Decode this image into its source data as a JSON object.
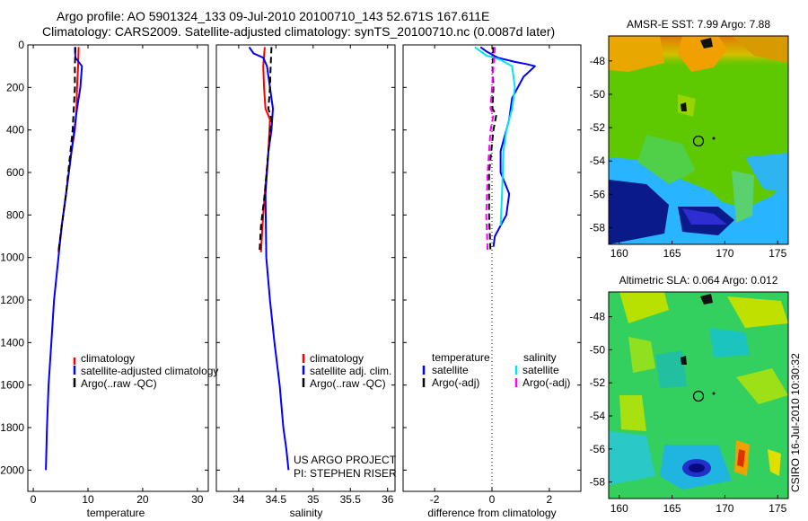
{
  "header": {
    "line1": "Argo profile: AO 5901324_133 09-Jul-2010 20100710_143 52.671S 167.611E",
    "line2": "Climatology: CARS2009. Satellite-adjusted climatology: synTS_20100710.nc (0.0087d later)"
  },
  "colors": {
    "red": "#ff0000",
    "blue": "#0000ff",
    "black": "#000000",
    "cyan": "#00e5ee",
    "magenta": "#ff00ff"
  },
  "chart_data": [
    {
      "type": "line",
      "xlabel": "temperature",
      "ylim": [
        2100,
        0
      ],
      "yticks": [
        0,
        200,
        400,
        600,
        800,
        1000,
        1200,
        1400,
        1600,
        1800,
        2000
      ],
      "xlim": [
        -1,
        32
      ],
      "xticks": [
        0,
        10,
        20,
        30
      ],
      "series": [
        {
          "name": "climatology",
          "color": "red",
          "x": [
            8.3,
            8.2,
            8.0,
            7.9,
            7.6,
            7.0,
            6.0,
            5.2,
            4.6
          ],
          "y": [
            10,
            100,
            200,
            300,
            400,
            500,
            700,
            850,
            975
          ]
        },
        {
          "name": "satellite-adjusted climatology",
          "color": "blue",
          "x": [
            7.6,
            7.7,
            8.9,
            8.6,
            8.0,
            7.5,
            7.0,
            6.0,
            5.2,
            4.6,
            3.8,
            3.3,
            2.8,
            2.5,
            2.3
          ],
          "y": [
            10,
            60,
            100,
            200,
            300,
            400,
            500,
            700,
            850,
            1000,
            1200,
            1400,
            1600,
            1800,
            2000
          ]
        },
        {
          "name": "Argo(..raw -QC)",
          "color": "black",
          "dashed": true,
          "x": [
            7.7,
            7.6,
            7.6,
            7.4,
            7.2,
            6.8,
            6.0,
            5.2,
            4.6
          ],
          "y": [
            10,
            100,
            200,
            300,
            400,
            500,
            700,
            850,
            975
          ]
        }
      ]
    },
    {
      "type": "line",
      "xlabel": "salinity",
      "ylim": [
        2100,
        0
      ],
      "xlim": [
        33.7,
        36.1
      ],
      "xticks": [
        34,
        34.5,
        35,
        35.5,
        36
      ],
      "series": [
        {
          "name": "climatology",
          "color": "red",
          "x": [
            34.35,
            34.33,
            34.34,
            34.36,
            34.42,
            34.4,
            34.35,
            34.32,
            34.3
          ],
          "y": [
            10,
            100,
            200,
            300,
            350,
            500,
            700,
            850,
            975
          ]
        },
        {
          "name": "satellite adj. clim.",
          "color": "blue",
          "x": [
            34.14,
            34.2,
            34.33,
            34.38,
            34.42,
            34.46,
            34.44,
            34.4,
            34.36,
            34.37,
            34.42,
            34.48,
            34.55,
            34.6,
            34.64,
            34.67
          ],
          "y": [
            10,
            40,
            60,
            100,
            200,
            300,
            400,
            500,
            700,
            1000,
            1200,
            1400,
            1600,
            1800,
            1900,
            2000
          ]
        },
        {
          "name": "Argo(..raw -QC)",
          "color": "black",
          "dashed": true,
          "x": [
            34.44,
            34.43,
            34.42,
            34.4,
            34.44,
            34.4,
            34.35,
            34.3,
            34.28
          ],
          "y": [
            10,
            100,
            200,
            300,
            350,
            500,
            700,
            850,
            975
          ]
        }
      ]
    },
    {
      "type": "line",
      "xlabel": "difference from climatology",
      "ylim": [
        2100,
        0
      ],
      "xlim": [
        -3.1,
        3.1
      ],
      "xticks": [
        -2,
        0,
        2
      ],
      "series": [
        {
          "name": "satellite",
          "group": "temperature",
          "color": "blue",
          "x": [
            -0.4,
            -0.2,
            0.2,
            0.8,
            1.2,
            1.5,
            1.1,
            0.7,
            0.6,
            0.4,
            0.3,
            0.3,
            0.6,
            0.5,
            0.1,
            0.05
          ],
          "y": [
            10,
            30,
            60,
            80,
            90,
            100,
            150,
            250,
            350,
            450,
            500,
            600,
            700,
            800,
            900,
            950
          ]
        },
        {
          "name": "Argo(-adj)",
          "group": "temperature",
          "color": "black",
          "dashed": true,
          "x": [
            0.05,
            0.02,
            0.05,
            0.02,
            0.15,
            0.05,
            -0.1,
            -0.1,
            -0.05
          ],
          "y": [
            10,
            100,
            200,
            300,
            330,
            400,
            600,
            800,
            975
          ]
        },
        {
          "name": "satellite",
          "group": "salinity",
          "color": "cyan",
          "x": [
            -0.6,
            -0.2,
            0.3,
            0.7,
            0.8,
            0.7,
            0.5,
            0.4,
            0.35,
            0.3
          ],
          "y": [
            10,
            50,
            70,
            100,
            200,
            300,
            400,
            500,
            700,
            850
          ]
        },
        {
          "name": "Argo(-adj)",
          "group": "salinity",
          "color": "magenta",
          "dashed": true,
          "x": [
            0.1,
            0.05,
            0.0,
            -0.05,
            0.05,
            -0.05,
            -0.15,
            -0.2,
            -0.15
          ],
          "y": [
            10,
            100,
            200,
            300,
            330,
            400,
            600,
            800,
            975
          ]
        }
      ]
    }
  ],
  "maps": [
    {
      "title": "AMSR-E SST: 7.99 Argo: 7.88",
      "xticks": [
        "160",
        "165",
        "170",
        "175"
      ],
      "yticks": [
        "-48",
        "-50",
        "-52",
        "-54",
        "-56",
        "-58"
      ],
      "xlim": [
        159,
        176
      ],
      "ylim": [
        -59,
        -46.5
      ],
      "marker": [
        167.6,
        -52.7
      ]
    },
    {
      "title": "Altimetric SLA: 0.064 Argo: 0.012",
      "xticks": [
        "160",
        "165",
        "170",
        "175"
      ],
      "yticks": [
        "-48",
        "-50",
        "-52",
        "-54",
        "-56",
        "-58"
      ],
      "xlim": [
        159,
        176
      ],
      "ylim": [
        -59,
        -46.5
      ],
      "marker": [
        167.6,
        -52.7
      ]
    }
  ],
  "legends": {
    "temperature": [
      "climatology",
      "satellite-adjusted climatology",
      "Argo(..raw -QC)"
    ],
    "salinity": [
      "climatology",
      "satellite adj. clim.",
      "Argo(..raw -QC)"
    ],
    "difference": {
      "temp_header": "temperature",
      "sal_header": "salinity",
      "temp_items": [
        "satellite",
        "Argo(-adj)"
      ],
      "sal_items": [
        "satellite",
        "Argo(-adj)"
      ]
    }
  },
  "annotations": {
    "project": "US ARGO PROJECT",
    "pi": "PI: STEPHEN RISER",
    "credit": "CSIRO 16-Jul-2010 10:30:32"
  }
}
